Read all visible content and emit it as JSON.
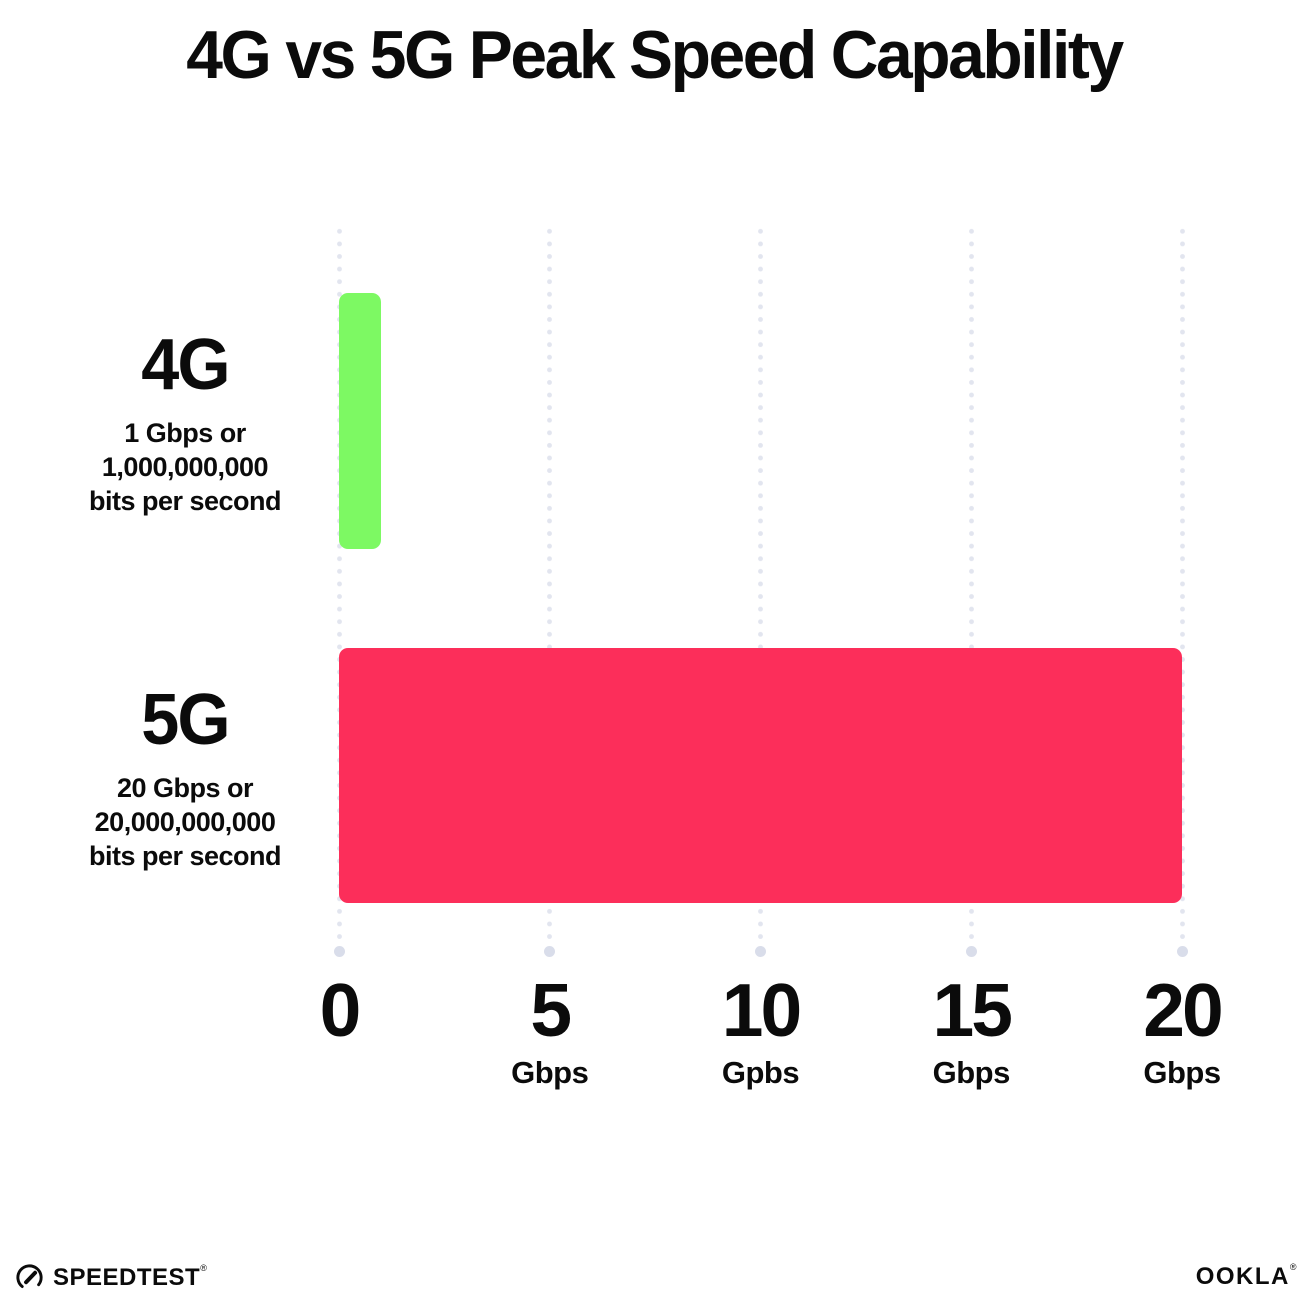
{
  "title": "4G vs 5G Peak Speed Capability",
  "colors": {
    "bar_4g_green": "#7DF963",
    "bar_5g_pink": "#FC2E5A",
    "gridline": "#E2E5EF",
    "gridline_end_dot": "#D9DDEA",
    "text": "#0B0B0B",
    "background": "#FFFFFF"
  },
  "chart_data": {
    "type": "bar",
    "orientation": "horizontal",
    "title": "4G vs 5G Peak Speed Capability",
    "categories": [
      "4G",
      "5G"
    ],
    "values": [
      1,
      20
    ],
    "bar_colors": [
      "#7DF963",
      "#FC2E5A"
    ],
    "row_labels": [
      {
        "name": "4G",
        "sub_line1": "1 Gbps or",
        "sub_line2": "1,000,000,000",
        "sub_line3": "bits per second"
      },
      {
        "name": "5G",
        "sub_line1": "20 Gbps or",
        "sub_line2": "20,000,000,000",
        "sub_line3": "bits per second"
      }
    ],
    "xlim": [
      0,
      20
    ],
    "x_ticks": [
      {
        "value": 0,
        "label": "0",
        "unit": ""
      },
      {
        "value": 5,
        "label": "5",
        "unit": "Gbps"
      },
      {
        "value": 10,
        "label": "10",
        "unit": "Gpbs"
      },
      {
        "value": 15,
        "label": "15",
        "unit": "Gbps"
      },
      {
        "value": 20,
        "label": "20",
        "unit": "Gbps"
      }
    ],
    "grid": "dotted-vertical",
    "legend": "none"
  },
  "footer": {
    "speedtest_label": "SPEEDTEST",
    "speedtest_mark": "®",
    "ookla_label": "OOKLA",
    "ookla_mark": "®"
  }
}
